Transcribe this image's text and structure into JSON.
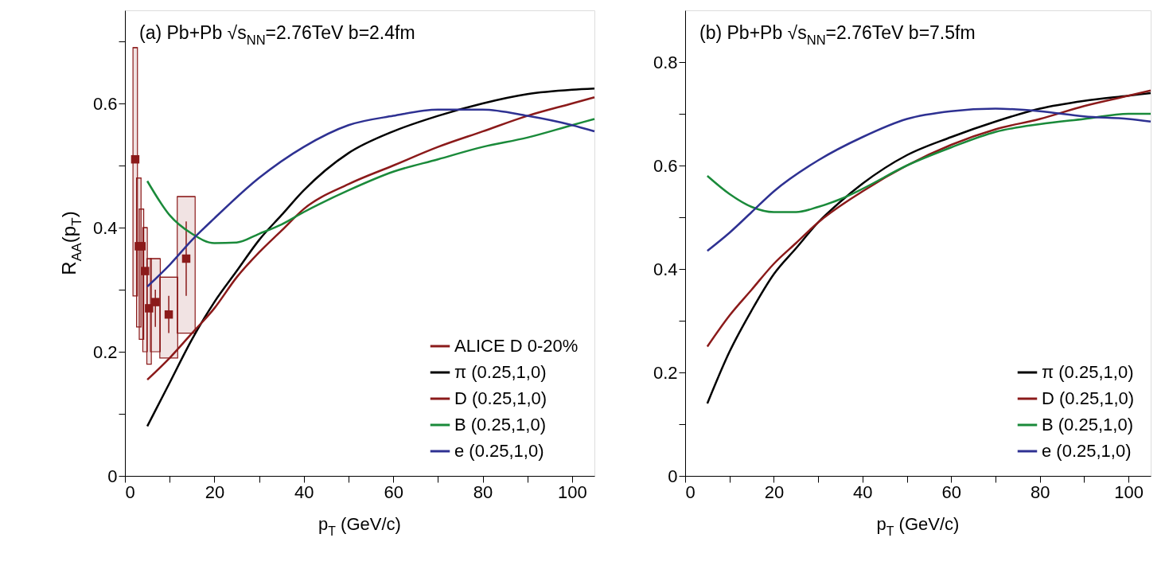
{
  "chart_data": [
    {
      "type": "line",
      "annotations": [
        "(a) Pb+Pb √s$_{NN}$=2.76TeV b=2.4fm"
      ],
      "xlabel": "p$_{T}$ (GeV/c)",
      "ylabel": "R$_{AA}$(p$_{T}$)",
      "xlim": [
        0,
        105
      ],
      "ylim": [
        0,
        0.75
      ],
      "xticks": [
        0,
        {
          "value": 10,
          "label": null
        },
        20,
        {
          "value": 30,
          "label": null
        },
        40,
        {
          "value": 50,
          "label": null
        },
        60,
        {
          "value": 70,
          "label": null
        },
        80,
        {
          "value": 90,
          "label": null
        },
        100
      ],
      "yticks": [
        0,
        {
          "value": 0.1,
          "label": null
        },
        0.2,
        {
          "value": 0.3,
          "label": null
        },
        0.4,
        {
          "value": 0.5,
          "label": null
        },
        0.6,
        {
          "value": 0.7,
          "label": null
        }
      ],
      "legend": "bottom right",
      "series": [
        {
          "type": "bar",
          "color": "#8b1a1a",
          "x": [
            2.3,
            3.1,
            3.7,
            4.5,
            5.4,
            6.8,
            9.8,
            13.7
          ],
          "base": [
            0.29,
            0.24,
            0.22,
            0.2,
            0.18,
            0.2,
            0.19,
            0.23
          ],
          "values": [
            0.4,
            0.24,
            0.21,
            0.2,
            0.17,
            0.15,
            0.13,
            0.22
          ],
          "xerrors": [
            0.5,
            0.5,
            0.5,
            0.5,
            0.5,
            1.1,
            2,
            2
          ]
        },
        {
          "type": "scatter",
          "name": "ALICE D 0-20%",
          "color": "#8b1a1a",
          "marker": "square",
          "x": [
            2.3,
            3.1,
            3.7,
            4.5,
            5.4,
            6.8,
            9.8,
            13.7
          ],
          "values": [
            0.51,
            0.37,
            0.37,
            0.33,
            0.27,
            0.28,
            0.26,
            0.35
          ],
          "errors": [
            null,
            null,
            null,
            null,
            null,
            [
              0.24,
              0.3
            ],
            [
              0.23,
              0.29
            ],
            [
              0.29,
              0.41
            ]
          ]
        },
        {
          "name": "π (0.25,1,0)",
          "color": "#000000",
          "x": [
            5,
            10,
            15,
            20,
            25,
            30,
            35,
            40,
            50,
            60,
            70,
            80,
            90,
            100,
            105
          ],
          "values": [
            0.08,
            0.15,
            0.22,
            0.28,
            0.33,
            0.38,
            0.42,
            0.46,
            0.52,
            0.555,
            0.58,
            0.6,
            0.615,
            0.622,
            0.624
          ]
        },
        {
          "name": "D (0.25,1,0)",
          "color": "#8b1a1a",
          "x": [
            5,
            10,
            15,
            20,
            25,
            30,
            35,
            40,
            50,
            60,
            70,
            80,
            90,
            100,
            105
          ],
          "values": [
            0.155,
            0.19,
            0.23,
            0.27,
            0.32,
            0.36,
            0.395,
            0.43,
            0.47,
            0.5,
            0.53,
            0.555,
            0.58,
            0.6,
            0.61
          ]
        },
        {
          "name": "B (0.25,1,0)",
          "color": "#1a8a3a",
          "x": [
            5,
            10,
            15,
            20,
            25,
            30,
            35,
            40,
            50,
            60,
            70,
            80,
            90,
            100,
            105
          ],
          "values": [
            0.475,
            0.42,
            0.39,
            0.375,
            0.376,
            0.39,
            0.405,
            0.425,
            0.46,
            0.49,
            0.51,
            0.53,
            0.545,
            0.565,
            0.575
          ]
        },
        {
          "name": "e (0.25,1,0)",
          "color": "#2e3192",
          "x": [
            5,
            10,
            15,
            20,
            30,
            40,
            50,
            60,
            70,
            80,
            90,
            100,
            105
          ],
          "values": [
            0.305,
            0.34,
            0.38,
            0.415,
            0.48,
            0.53,
            0.565,
            0.58,
            0.59,
            0.59,
            0.58,
            0.565,
            0.555
          ]
        }
      ]
    },
    {
      "type": "line",
      "annotations": [
        "(b) Pb+Pb √s$_{NN}$=2.76TeV b=7.5fm"
      ],
      "xlabel": "p$_{T}$ (GeV/c)",
      "xlim": [
        0,
        105
      ],
      "ylim": [
        0,
        0.9
      ],
      "xticks": [
        0,
        {
          "value": 10,
          "label": null
        },
        20,
        {
          "value": 30,
          "label": null
        },
        40,
        {
          "value": 50,
          "label": null
        },
        60,
        {
          "value": 70,
          "label": null
        },
        80,
        {
          "value": 90,
          "label": null
        },
        100
      ],
      "yticks": [
        0,
        {
          "value": 0.1,
          "label": null
        },
        0.2,
        {
          "value": 0.3,
          "label": null
        },
        0.4,
        {
          "value": 0.5,
          "label": null
        },
        0.6,
        {
          "value": 0.7,
          "label": null
        },
        0.8
      ],
      "legend": "bottom right",
      "series": [
        {
          "name": "π (0.25,1,0)",
          "color": "#000000",
          "x": [
            5,
            10,
            15,
            20,
            25,
            30,
            35,
            40,
            50,
            60,
            70,
            80,
            90,
            100,
            105
          ],
          "values": [
            0.14,
            0.24,
            0.32,
            0.39,
            0.44,
            0.49,
            0.53,
            0.565,
            0.62,
            0.655,
            0.685,
            0.71,
            0.725,
            0.735,
            0.74
          ]
        },
        {
          "name": "D (0.25,1,0)",
          "color": "#8b1a1a",
          "x": [
            5,
            10,
            15,
            20,
            25,
            30,
            40,
            50,
            60,
            70,
            80,
            90,
            100,
            105
          ],
          "values": [
            0.25,
            0.31,
            0.36,
            0.41,
            0.45,
            0.49,
            0.55,
            0.6,
            0.64,
            0.67,
            0.69,
            0.715,
            0.735,
            0.745
          ]
        },
        {
          "name": "B (0.25,1,0)",
          "color": "#1a8a3a",
          "x": [
            5,
            10,
            15,
            20,
            25,
            30,
            35,
            40,
            50,
            60,
            70,
            80,
            90,
            100,
            105
          ],
          "values": [
            0.58,
            0.545,
            0.52,
            0.51,
            0.51,
            0.52,
            0.535,
            0.555,
            0.6,
            0.635,
            0.665,
            0.68,
            0.69,
            0.7,
            0.7
          ]
        },
        {
          "name": "e (0.25,1,0)",
          "color": "#2e3192",
          "x": [
            5,
            10,
            15,
            20,
            30,
            40,
            50,
            60,
            70,
            80,
            90,
            100,
            105
          ],
          "values": [
            0.435,
            0.47,
            0.51,
            0.55,
            0.61,
            0.655,
            0.69,
            0.705,
            0.71,
            0.705,
            0.695,
            0.69,
            0.685
          ]
        }
      ]
    }
  ]
}
